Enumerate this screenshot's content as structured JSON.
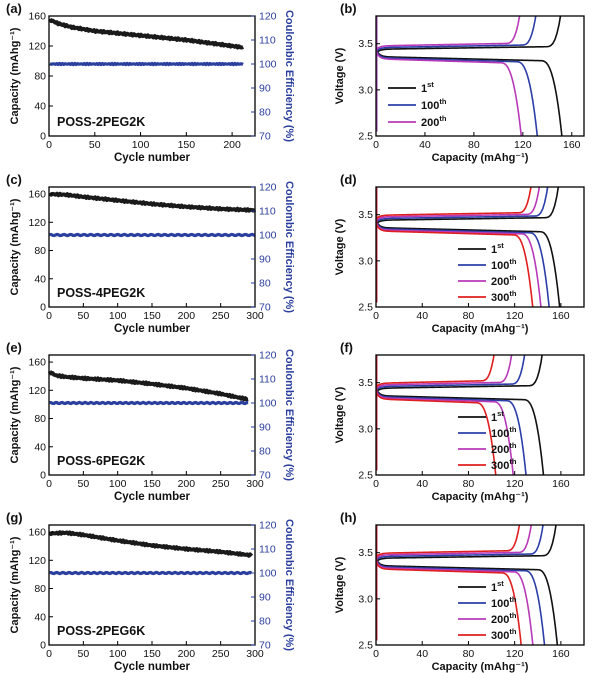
{
  "figure": {
    "rows": [
      {
        "cycling": {
          "letter": "(a)",
          "sample": "POSS-2PEG2K",
          "type": "line",
          "xlabel": "Cycle number",
          "ylabel": "Capacity (mAhg⁻¹)",
          "y2label": "Coulombic Efficiency (%)",
          "xlim": [
            0,
            225
          ],
          "ylim": [
            0,
            160
          ],
          "y2lim": [
            70,
            120
          ],
          "xticks": [
            0,
            50,
            100,
            150,
            200
          ],
          "yticks": [
            0,
            40,
            80,
            120,
            160
          ],
          "y2ticks": [
            70,
            80,
            90,
            100,
            110,
            120
          ],
          "capacity": {
            "x": [
              1,
              10,
              25,
              50,
              75,
              100,
              125,
              150,
              175,
              200,
              212
            ],
            "y": [
              155,
              150,
              145,
              140,
              137,
              134,
              131,
              128,
              124,
              120,
              118
            ]
          },
          "efficiency": {
            "x": [
              1,
              50,
              100,
              150,
              212
            ],
            "y": [
              100,
              100,
              100,
              100,
              100
            ]
          },
          "colors": {
            "capacity": "#1a1a1a",
            "efficiency": "#2b3f9e"
          }
        },
        "voltage": {
          "letter": "(b)",
          "type": "line",
          "xlabel": "Capacity (mAhg⁻¹)",
          "ylabel": "Voltage (V)",
          "xlim": [
            0,
            170
          ],
          "ylim": [
            2.5,
            3.8
          ],
          "xticks": [
            0,
            40,
            80,
            120,
            160
          ],
          "yticks": [
            2.5,
            3.0,
            3.5
          ],
          "legend_position": "middle-left",
          "series": [
            {
              "base": "1",
              "sup": "st",
              "color": "#111111",
              "cap": 153
            },
            {
              "base": "100",
              "sup": "th",
              "color": "#2c3ea8",
              "cap": 133
            },
            {
              "base": "200",
              "sup": "th",
              "color": "#b83ab8",
              "cap": 120
            }
          ]
        }
      },
      {
        "cycling": {
          "letter": "(c)",
          "sample": "POSS-4PEG2K",
          "type": "line",
          "xlabel": "Cycle number",
          "ylabel": "Capacity (mAhg⁻¹)",
          "y2label": "Coulombic Efficiency (%)",
          "xlim": [
            0,
            300
          ],
          "ylim": [
            0,
            170
          ],
          "y2lim": [
            70,
            120
          ],
          "xticks": [
            0,
            50,
            100,
            150,
            200,
            250,
            300
          ],
          "yticks": [
            0,
            40,
            80,
            120,
            160
          ],
          "y2ticks": [
            70,
            80,
            90,
            100,
            110,
            120
          ],
          "capacity": {
            "x": [
              1,
              25,
              50,
              100,
              150,
              200,
              250,
              300
            ],
            "y": [
              160,
              159,
              156,
              151,
              146,
              142,
              139,
              137
            ]
          },
          "efficiency": {
            "x": [
              1,
              100,
              200,
              300
            ],
            "y": [
              100,
              100,
              100,
              100
            ]
          },
          "colors": {
            "capacity": "#1a1a1a",
            "efficiency": "#2b3f9e"
          }
        },
        "voltage": {
          "letter": "(d)",
          "type": "line",
          "xlabel": "Capacity (mAhg⁻¹)",
          "ylabel": "Voltage (V)",
          "xlim": [
            0,
            180
          ],
          "ylim": [
            2.5,
            3.8
          ],
          "xticks": [
            0,
            40,
            80,
            120,
            160
          ],
          "yticks": [
            2.5,
            3.0,
            3.5
          ],
          "legend_position": "middle-right",
          "series": [
            {
              "base": "1",
              "sup": "st",
              "color": "#111111",
              "cap": 160
            },
            {
              "base": "100",
              "sup": "th",
              "color": "#2c3ea8",
              "cap": 151
            },
            {
              "base": "200",
              "sup": "th",
              "color": "#b83ab8",
              "cap": 144
            },
            {
              "base": "300",
              "sup": "th",
              "color": "#e01f1f",
              "cap": 137
            }
          ]
        }
      },
      {
        "cycling": {
          "letter": "(e)",
          "sample": "POSS-6PEG2K",
          "type": "line",
          "xlabel": "Cycle number",
          "ylabel": "Capacity (mAhg⁻¹)",
          "y2label": "Coulombic Efficiency (%)",
          "xlim": [
            0,
            300
          ],
          "ylim": [
            0,
            170
          ],
          "y2lim": [
            70,
            120
          ],
          "xticks": [
            0,
            50,
            100,
            150,
            200,
            250,
            300
          ],
          "yticks": [
            0,
            40,
            80,
            120,
            160
          ],
          "y2ticks": [
            70,
            80,
            90,
            100,
            110,
            120
          ],
          "capacity": {
            "x": [
              1,
              10,
              25,
              50,
              100,
              150,
              200,
              250,
              290
            ],
            "y": [
              146,
              141,
              139,
              137,
              134,
              129,
              123,
              115,
              107
            ]
          },
          "efficiency": {
            "x": [
              1,
              100,
              200,
              290
            ],
            "y": [
              100,
              100,
              100,
              100
            ]
          },
          "colors": {
            "capacity": "#1a1a1a",
            "efficiency": "#2b3f9e"
          }
        },
        "voltage": {
          "letter": "(f)",
          "type": "line",
          "xlabel": "Capacity (mAhg⁻¹)",
          "ylabel": "Voltage (V)",
          "xlim": [
            0,
            180
          ],
          "ylim": [
            2.5,
            3.8
          ],
          "xticks": [
            0,
            40,
            80,
            120,
            160
          ],
          "yticks": [
            2.5,
            3.0,
            3.5
          ],
          "legend_position": "middle-right",
          "series": [
            {
              "base": "1",
              "sup": "st",
              "color": "#111111",
              "cap": 146
            },
            {
              "base": "100",
              "sup": "th",
              "color": "#2c3ea8",
              "cap": 131
            },
            {
              "base": "200",
              "sup": "th",
              "color": "#b83ab8",
              "cap": 120
            },
            {
              "base": "300",
              "sup": "th",
              "color": "#e01f1f",
              "cap": 105
            }
          ]
        }
      },
      {
        "cycling": {
          "letter": "(g)",
          "sample": "POSS-2PEG6K",
          "type": "line",
          "xlabel": "Cycle number",
          "ylabel": "Capacity (mAhg⁻¹)",
          "y2label": "Coulombic Efficiency (%)",
          "xlim": [
            0,
            300
          ],
          "ylim": [
            0,
            170
          ],
          "y2lim": [
            70,
            120
          ],
          "xticks": [
            0,
            50,
            100,
            150,
            200,
            250,
            300
          ],
          "yticks": [
            0,
            40,
            80,
            120,
            160
          ],
          "y2ticks": [
            70,
            80,
            90,
            100,
            110,
            120
          ],
          "capacity": {
            "x": [
              1,
              25,
              50,
              100,
              150,
              200,
              250,
              295
            ],
            "y": [
              158,
              159,
              156,
              148,
              141,
              136,
              132,
              127
            ]
          },
          "efficiency": {
            "x": [
              1,
              100,
              200,
              295
            ],
            "y": [
              100,
              100,
              100,
              100
            ]
          },
          "colors": {
            "capacity": "#1a1a1a",
            "efficiency": "#2b3f9e"
          }
        },
        "voltage": {
          "letter": "(h)",
          "type": "line",
          "xlabel": "Capacity (mAhg⁻¹)",
          "ylabel": "Voltage (V)",
          "xlim": [
            0,
            180
          ],
          "ylim": [
            2.5,
            3.8
          ],
          "xticks": [
            0,
            40,
            80,
            120,
            160
          ],
          "yticks": [
            2.5,
            3.0,
            3.5
          ],
          "legend_position": "middle-right",
          "series": [
            {
              "base": "1",
              "sup": "st",
              "color": "#111111",
              "cap": 158
            },
            {
              "base": "100",
              "sup": "th",
              "color": "#2c3ea8",
              "cap": 147
            },
            {
              "base": "200",
              "sup": "th",
              "color": "#b83ab8",
              "cap": 137
            },
            {
              "base": "300",
              "sup": "th",
              "color": "#e01f1f",
              "cap": 127
            }
          ]
        }
      }
    ]
  }
}
